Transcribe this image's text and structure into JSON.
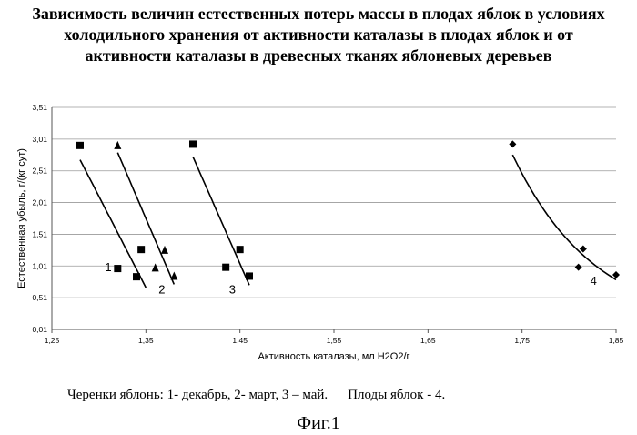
{
  "title_lines": [
    "Зависимость величин естественных потерь массы в плодах яблок в условиях",
    "холодильного хранения от активности каталазы в плодах яблок  и от",
    "активности каталазы в древесных тканях яблоневых деревьев"
  ],
  "caption": {
    "part1": "Черенки яблонь: 1- декабрь, 2- март, 3 – май.",
    "part2": "Плоды яблок - 4."
  },
  "figure_label": "Фиг.1",
  "chart_data": {
    "type": "scatter",
    "xlabel": "Активность каталазы, мл H2O2/г",
    "ylabel": "Естественная убыль, г/(кг сут)",
    "xlim": [
      1.25,
      1.85
    ],
    "ylim": [
      0.01,
      3.51
    ],
    "x_ticks": [
      "1,25",
      "1,35",
      "1,45",
      "1,55",
      "1,65",
      "1,75",
      "1,85"
    ],
    "y_ticks": [
      "0,01",
      "0,51",
      "1,01",
      "1,51",
      "2,01",
      "2,51",
      "3,01",
      "3,51"
    ],
    "grid": "horizontal",
    "series": [
      {
        "name": "1",
        "marker": "square",
        "points": [
          [
            1.28,
            2.91
          ],
          [
            1.32,
            0.97
          ],
          [
            1.34,
            0.84
          ],
          [
            1.345,
            1.27
          ]
        ],
        "trend": "linear",
        "trend_x": [
          1.28,
          1.35
        ]
      },
      {
        "name": "2",
        "marker": "triangle",
        "points": [
          [
            1.32,
            2.91
          ],
          [
            1.36,
            0.98
          ],
          [
            1.37,
            1.26
          ],
          [
            1.38,
            0.85
          ]
        ],
        "trend": "linear",
        "trend_x": [
          1.32,
          1.38
        ]
      },
      {
        "name": "3",
        "marker": "square",
        "points": [
          [
            1.4,
            2.93
          ],
          [
            1.435,
            0.99
          ],
          [
            1.45,
            1.27
          ],
          [
            1.46,
            0.85
          ]
        ],
        "trend": "linear",
        "trend_x": [
          1.4,
          1.46
        ]
      },
      {
        "name": "4",
        "marker": "diamond",
        "points": [
          [
            1.74,
            2.93
          ],
          [
            1.81,
            0.99
          ],
          [
            1.815,
            1.28
          ],
          [
            1.85,
            0.87
          ]
        ],
        "trend": "curve",
        "trend_x": [
          1.74,
          1.85
        ]
      }
    ],
    "series_labels": [
      {
        "text": "1",
        "x": 1.31,
        "y": 0.93
      },
      {
        "text": "2",
        "x": 1.367,
        "y": 0.58
      },
      {
        "text": "3",
        "x": 1.442,
        "y": 0.58
      },
      {
        "text": "4",
        "x": 1.826,
        "y": 0.71
      }
    ]
  }
}
